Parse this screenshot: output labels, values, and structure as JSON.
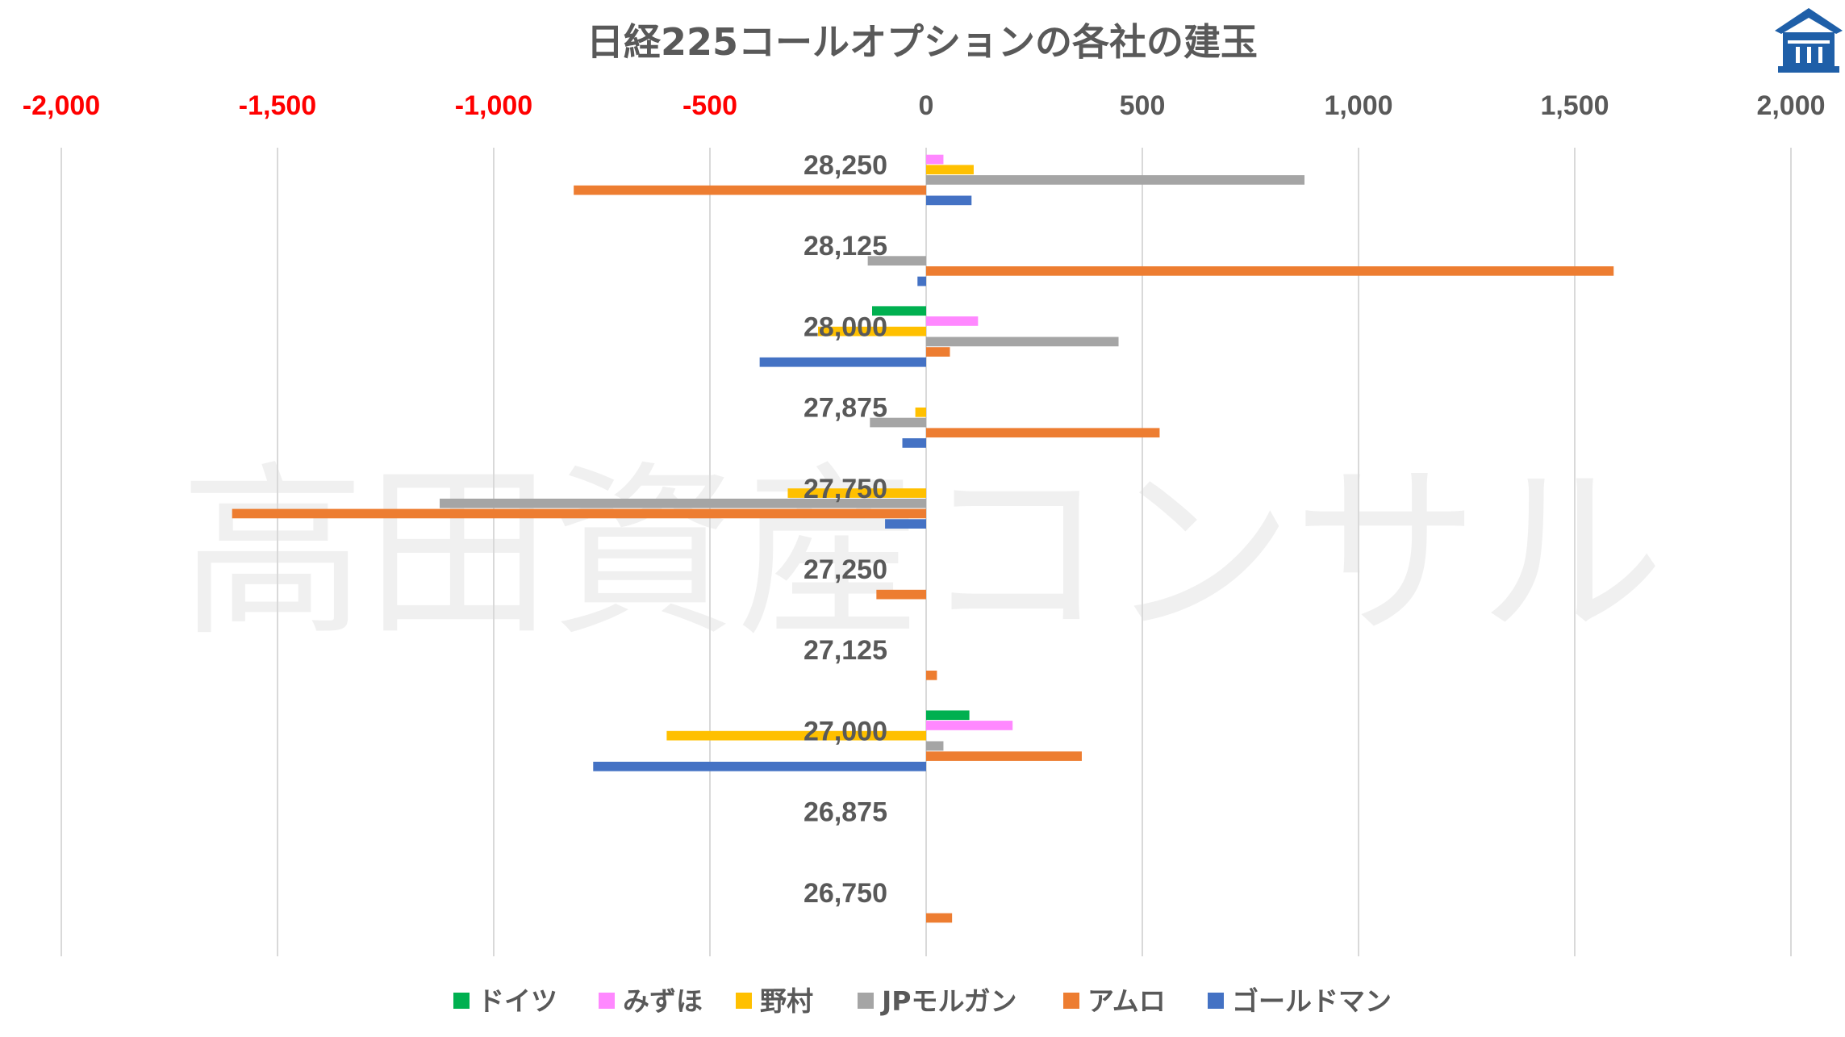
{
  "watermark": "高田資産コンサル",
  "logo_icon": "pagoda-roof-icon",
  "chart_data": {
    "type": "bar",
    "orientation": "horizontal",
    "title": "日経225コールオプションの各社の建玉",
    "xlim": [
      -2000,
      2000
    ],
    "x_ticks": [
      -2000,
      -1500,
      -1000,
      -500,
      0,
      500,
      1000,
      1500,
      2000
    ],
    "x_tick_labels": [
      "-2,000",
      "-1,500",
      "-1,000",
      "-500",
      "0",
      "500",
      "1,000",
      "1,500",
      "2,000"
    ],
    "negative_tick_color": "#ff0000",
    "positive_tick_color": "#595959",
    "grid": "vertical",
    "legend_position": "bottom",
    "categories": [
      "28,250",
      "28,125",
      "28,000",
      "27,875",
      "27,750",
      "27,250",
      "27,125",
      "27,000",
      "26,875",
      "26,750"
    ],
    "series": [
      {
        "name": "ドイツ",
        "color": "#00b050",
        "values": [
          0,
          0,
          -125,
          0,
          0,
          0,
          0,
          100,
          0,
          0
        ]
      },
      {
        "name": "みずほ",
        "color": "#ff88ff",
        "values": [
          40,
          0,
          120,
          0,
          0,
          0,
          0,
          200,
          0,
          0
        ]
      },
      {
        "name": "野村",
        "color": "#ffc000",
        "values": [
          110,
          0,
          -250,
          -25,
          -320,
          0,
          0,
          -600,
          0,
          0
        ]
      },
      {
        "name": "JPモルガン",
        "color": "#a5a5a5",
        "values": [
          875,
          -135,
          445,
          -130,
          -1125,
          0,
          0,
          40,
          0,
          0
        ]
      },
      {
        "name": "アムロ",
        "color": "#ed7d31",
        "values": [
          -815,
          1590,
          55,
          540,
          -1605,
          -115,
          25,
          360,
          0,
          60
        ]
      },
      {
        "name": "ゴールドマン",
        "color": "#4472c4",
        "values": [
          105,
          -20,
          -385,
          -55,
          -95,
          0,
          0,
          -770,
          0,
          0
        ]
      }
    ]
  }
}
